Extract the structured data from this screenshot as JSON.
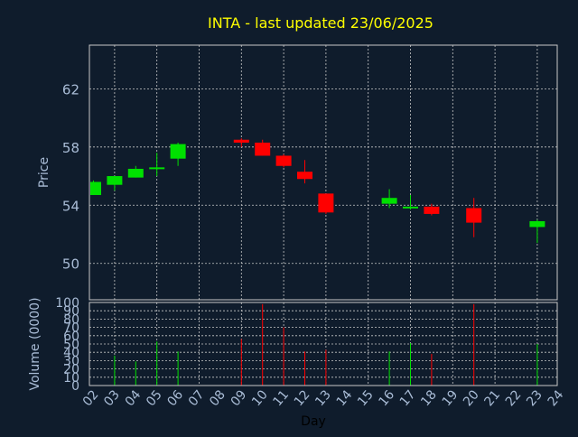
{
  "chart_data": {
    "type": "candlestick",
    "title": "INTA - last updated 23/06/2025",
    "xlabel": "Day",
    "price_panel": {
      "ylabel": "Price",
      "ylim": [
        47.5,
        65
      ],
      "yticks": [
        "50",
        "54",
        "58",
        "62"
      ],
      "ytick_values": [
        50,
        54,
        58,
        62
      ]
    },
    "volume_panel": {
      "ylabel": "Volume (0000)",
      "ylim": [
        0,
        100
      ],
      "yticks": [
        "0",
        "10",
        "20",
        "30",
        "40",
        "50",
        "60",
        "70",
        "80",
        "90",
        "100"
      ],
      "ytick_values": [
        0,
        10,
        20,
        30,
        40,
        50,
        60,
        70,
        80,
        90,
        100
      ]
    },
    "x_ticks": [
      "02",
      "03",
      "04",
      "05",
      "06",
      "07",
      "08",
      "09",
      "10",
      "11",
      "12",
      "13",
      "14",
      "15",
      "16",
      "17",
      "18",
      "19",
      "20",
      "21",
      "22",
      "23",
      "24"
    ],
    "candles": [
      {
        "day": "02",
        "open": 54.7,
        "close": 55.6,
        "high": 55.7,
        "low": 54.7,
        "volume": 0
      },
      {
        "day": "03",
        "open": 55.4,
        "close": 56.0,
        "high": 56.0,
        "low": 55.0,
        "volume": 36
      },
      {
        "day": "04",
        "open": 55.9,
        "close": 56.5,
        "high": 56.7,
        "low": 55.9,
        "volume": 29
      },
      {
        "day": "05",
        "open": 56.5,
        "close": 56.6,
        "high": 57.6,
        "low": 56.0,
        "volume": 53
      },
      {
        "day": "06",
        "open": 57.2,
        "close": 58.2,
        "high": 58.3,
        "low": 56.7,
        "volume": 41
      },
      {
        "day": "09",
        "open": 58.5,
        "close": 58.3,
        "high": 58.6,
        "low": 58.0,
        "volume": 56
      },
      {
        "day": "10",
        "open": 58.3,
        "close": 57.4,
        "high": 58.5,
        "low": 57.4,
        "volume": 98
      },
      {
        "day": "11",
        "open": 57.4,
        "close": 56.7,
        "high": 57.5,
        "low": 56.6,
        "volume": 70
      },
      {
        "day": "12",
        "open": 56.3,
        "close": 55.8,
        "high": 57.1,
        "low": 55.5,
        "volume": 41
      },
      {
        "day": "13",
        "open": 54.8,
        "close": 53.5,
        "high": 54.8,
        "low": 53.4,
        "volume": 43
      },
      {
        "day": "16",
        "open": 54.1,
        "close": 54.5,
        "high": 55.1,
        "low": 53.8,
        "volume": 41
      },
      {
        "day": "17",
        "open": 53.8,
        "close": 53.9,
        "high": 54.7,
        "low": 53.7,
        "volume": 51
      },
      {
        "day": "18",
        "open": 53.9,
        "close": 53.4,
        "high": 54.1,
        "low": 53.3,
        "volume": 38
      },
      {
        "day": "20",
        "open": 53.8,
        "close": 52.8,
        "high": 54.5,
        "low": 51.8,
        "volume": 98
      },
      {
        "day": "23",
        "open": 52.5,
        "close": 52.9,
        "high": 53.0,
        "low": 51.4,
        "volume": 50
      }
    ],
    "colors": {
      "background": "#0f1c2c",
      "grid": "#c8c8c8",
      "axis_text": "#a9bcd6",
      "title": "#ffff00",
      "xlabel": "#000000",
      "up": "#00e000",
      "down": "#ff0000"
    }
  }
}
